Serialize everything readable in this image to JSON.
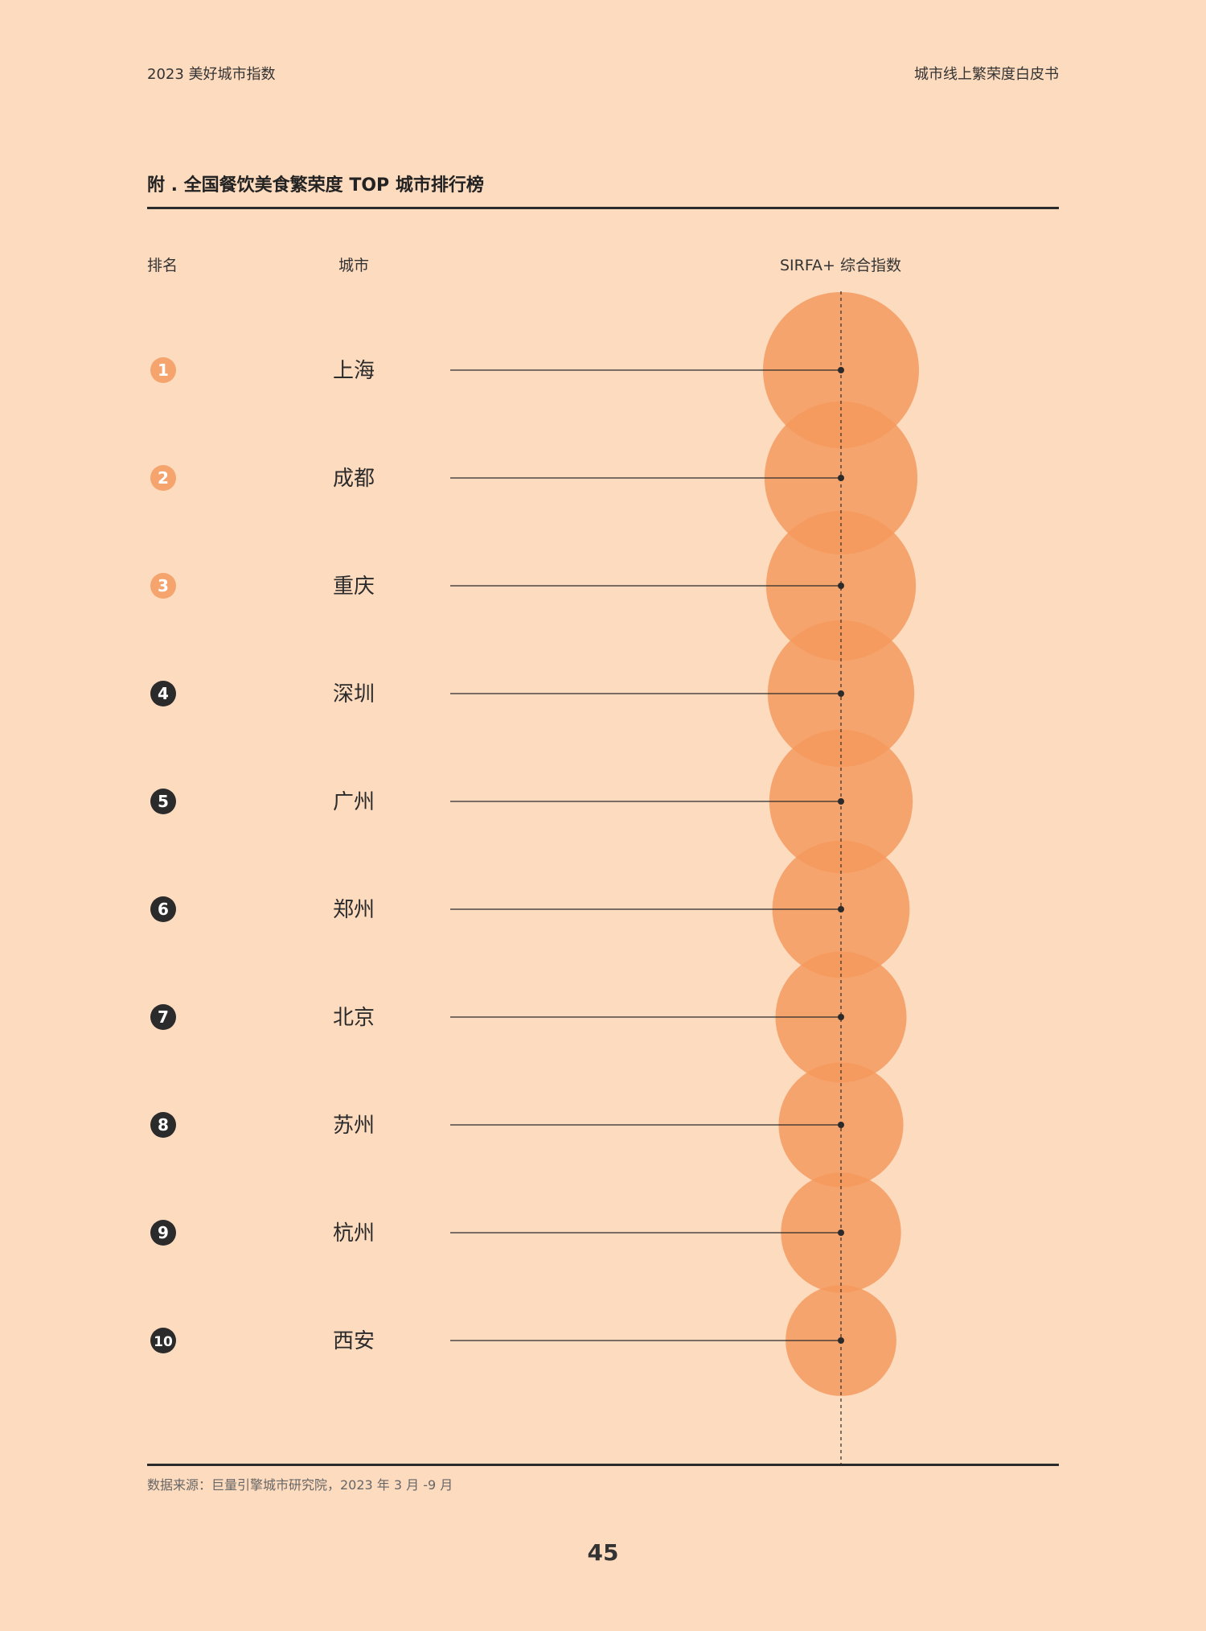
{
  "header": {
    "left": "2023 美好城市指数",
    "right": "城市线上繁荣度白皮书"
  },
  "section_title": "附 . 全国餐饮美食繁荣度 TOP 城市排行榜",
  "columns": {
    "rank": "排名",
    "city": "城市",
    "index": "SIRFA+ 综合指数"
  },
  "colors": {
    "background": "#FDDBBF",
    "bubble": "#F59A5E",
    "top3_badge": "#F5A46E",
    "other_badge": "#2b2b2b",
    "line": "#2b2b2b"
  },
  "chart_data": {
    "type": "bubble",
    "title": "附 . 全国餐饮美食繁荣度 TOP 城市排行榜",
    "value_label": "SIRFA+ 综合指数",
    "size_unit": "relative_diameter",
    "rows": [
      {
        "rank": "1",
        "city": "上海",
        "size": 1.0,
        "top3": true
      },
      {
        "rank": "2",
        "city": "成都",
        "size": 0.98,
        "top3": true
      },
      {
        "rank": "3",
        "city": "重庆",
        "size": 0.96,
        "top3": true
      },
      {
        "rank": "4",
        "city": "深圳",
        "size": 0.94,
        "top3": false
      },
      {
        "rank": "5",
        "city": "广州",
        "size": 0.92,
        "top3": false
      },
      {
        "rank": "6",
        "city": "郑州",
        "size": 0.88,
        "top3": false
      },
      {
        "rank": "7",
        "city": "北京",
        "size": 0.84,
        "top3": false
      },
      {
        "rank": "8",
        "city": "苏州",
        "size": 0.8,
        "top3": false
      },
      {
        "rank": "9",
        "city": "杭州",
        "size": 0.77,
        "top3": false
      },
      {
        "rank": "10",
        "city": "西安",
        "size": 0.71,
        "top3": false
      }
    ]
  },
  "footer": {
    "source": "数据来源：巨量引擎城市研究院，2023 年 3 月 -9 月",
    "page_number": "45"
  }
}
